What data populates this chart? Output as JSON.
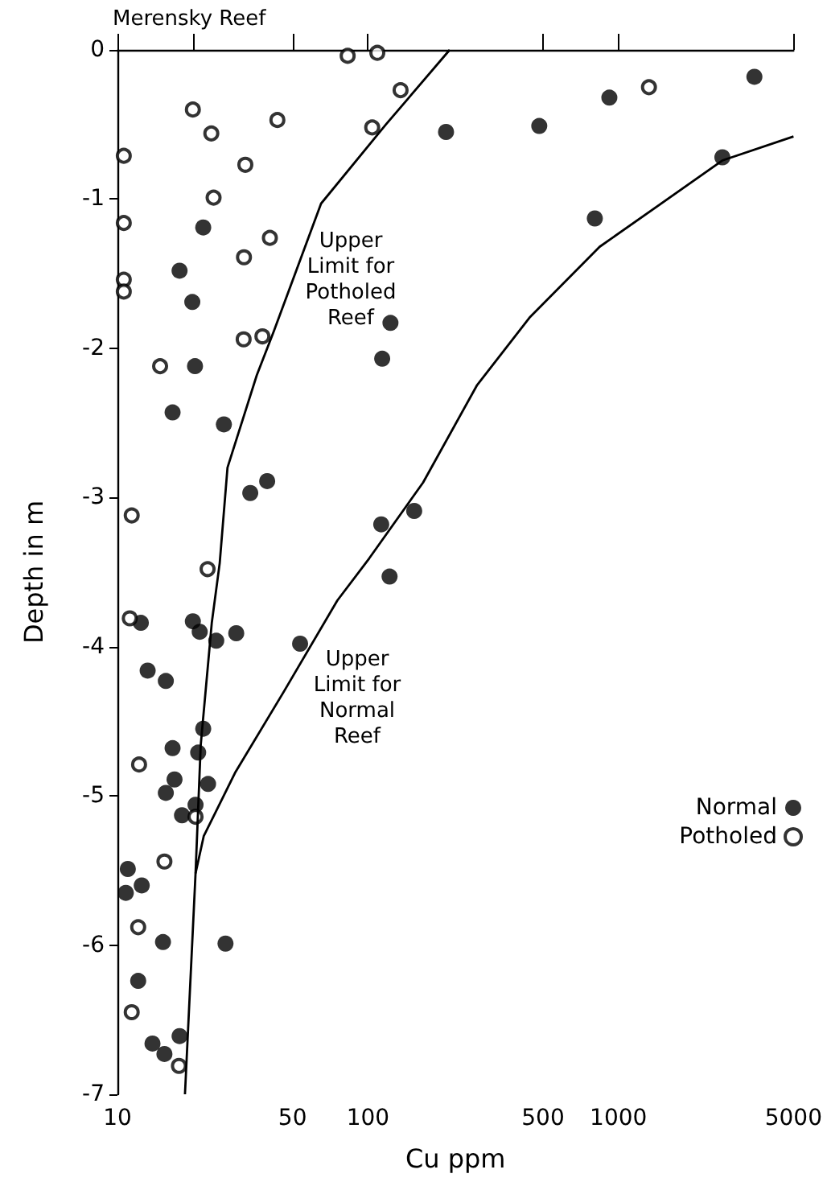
{
  "chart_data": {
    "type": "scatter",
    "xlabel": "Cu ppm",
    "ylabel": "Depth in m",
    "annotations": [
      "Merensky Reef",
      "Upper\nLimit for\nPotholed\nReef",
      "Upper\nLimit for\nNormal\nReef"
    ],
    "log": "x",
    "grid": false,
    "legend": "right",
    "xlim": [
      10,
      5000
    ],
    "xticks": [
      10,
      {
        "value": 20,
        "label": null
      },
      50,
      100,
      500,
      1000,
      5000
    ],
    "ylim": [
      -7,
      0
    ],
    "yticks": [
      -7,
      -6,
      -5,
      -4,
      -3,
      -2,
      -1,
      0
    ],
    "series": [
      {
        "name": "Normal",
        "color": "#000000",
        "marker": "circle",
        "x": [
          205,
          22,
          17.7,
          19.9,
          123,
          114,
          20.4,
          16.6,
          26.6,
          33.9,
          39.6,
          113,
          153,
          483,
          920,
          3490,
          2600,
          805,
          12.4,
          20,
          21.3,
          24.8,
          29.8,
          53.6,
          122,
          13.2,
          15.6,
          22,
          16.6,
          21,
          16.9,
          23,
          15.6,
          20.5,
          18.1,
          11,
          12.5,
          10.8,
          15.2,
          27,
          12.1,
          17.7,
          13.8,
          15.4
        ],
        "values": [
          -0.55,
          -1.19,
          -1.48,
          -1.69,
          -1.83,
          -2.07,
          -2.12,
          -2.43,
          -2.51,
          -2.97,
          -2.89,
          -3.18,
          -3.09,
          -0.51,
          -0.32,
          -0.18,
          -0.72,
          -1.13,
          -3.84,
          -3.83,
          -3.9,
          -3.96,
          -3.91,
          -3.98,
          -3.53,
          -4.16,
          -4.23,
          -4.55,
          -4.68,
          -4.71,
          -4.89,
          -4.92,
          -4.98,
          -5.06,
          -5.13,
          -5.49,
          -5.6,
          -5.65,
          -5.98,
          -5.99,
          -6.24,
          -6.61,
          -6.66,
          -6.73
        ]
      },
      {
        "name": "Potholed",
        "color": "#000000",
        "marker": "open circle",
        "x": [
          83,
          109,
          135,
          20,
          43.5,
          104,
          23.7,
          10.6,
          32.4,
          24.2,
          10.6,
          40.6,
          32,
          10.6,
          10.6,
          31.9,
          37.9,
          14.8,
          11.4,
          1324,
          22.9,
          11.2,
          12.2,
          20.5,
          15.4,
          12.1,
          11.4,
          17.6
        ],
        "values": [
          -0.04,
          -0.02,
          -0.27,
          -0.4,
          -0.47,
          -0.52,
          -0.56,
          -0.71,
          -0.77,
          -0.99,
          -1.16,
          -1.26,
          -1.39,
          -1.54,
          -1.62,
          -1.94,
          -1.92,
          -2.12,
          -3.12,
          -0.25,
          -3.48,
          -3.81,
          -4.79,
          -5.14,
          -5.44,
          -5.88,
          -6.45,
          -6.81
        ]
      },
      {
        "type": "line",
        "color": "#000000",
        "marker": "none",
        "line_style": "solid",
        "x": [
          212,
          118,
          65,
          42,
          36,
          27.5,
          25.6,
          23.8,
          21.5,
          20.5,
          18.6
        ],
        "values": [
          0,
          -0.5,
          -1.03,
          -1.89,
          -2.18,
          -2.8,
          -3.44,
          -3.84,
          -4.66,
          -5.52,
          -7
        ]
      },
      {
        "type": "line",
        "color": "#000000",
        "marker": "none",
        "line_style": "solid",
        "x": [
          5000,
          2610,
          841,
          444,
          272,
          166,
          101,
          75.5,
          46.2,
          29.6,
          22.1,
          20.5
        ],
        "values": [
          -0.58,
          -0.74,
          -1.32,
          -1.79,
          -2.25,
          -2.9,
          -3.41,
          -3.69,
          -4.3,
          -4.84,
          -5.27,
          -5.52
        ]
      }
    ]
  }
}
